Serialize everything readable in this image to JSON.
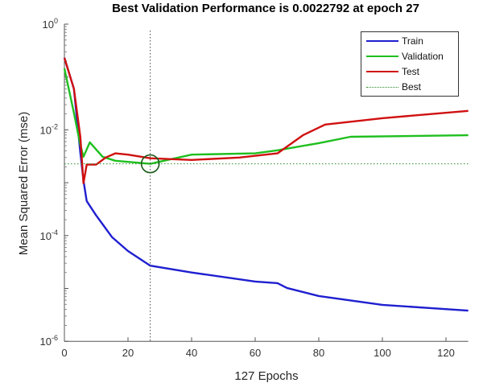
{
  "chart_data": {
    "type": "line",
    "title": "Best Validation Performance is 0.0022792 at epoch 27",
    "xlabel": "127 Epochs",
    "ylabel": "Mean Squared Error  (mse)",
    "xlim": [
      0,
      127
    ],
    "ylim": [
      1e-06,
      1
    ],
    "yscale": "log",
    "xticks": [
      0,
      20,
      40,
      60,
      80,
      100,
      120
    ],
    "yticks": [
      "10^0",
      "10^-2",
      "10^-4",
      "10^-6"
    ],
    "grid": false,
    "legend_position": "upper right",
    "series": [
      {
        "name": "Train",
        "color": "#1f1fd0",
        "style": "solid",
        "points": [
          [
            0,
            0.23
          ],
          [
            3,
            0.06
          ],
          [
            5,
            0.0037
          ],
          [
            6,
            0.0011
          ],
          [
            7,
            0.00045
          ],
          [
            10,
            0.00024
          ],
          [
            15,
            9.3e-05
          ],
          [
            20,
            5.1e-05
          ],
          [
            27,
            2.7e-05
          ],
          [
            40,
            2e-05
          ],
          [
            60,
            1.35e-05
          ],
          [
            67,
            1.26e-05
          ],
          [
            70,
            1.02e-05
          ],
          [
            80,
            7.2e-06
          ],
          [
            100,
            4.9e-06
          ],
          [
            127,
            3.8e-06
          ]
        ]
      },
      {
        "name": "Validation",
        "color": "#1fbf1f",
        "style": "solid",
        "points": [
          [
            0,
            0.145
          ],
          [
            3,
            0.021
          ],
          [
            5,
            0.0052
          ],
          [
            6,
            0.0031
          ],
          [
            8,
            0.0058
          ],
          [
            12,
            0.0031
          ],
          [
            16,
            0.0026
          ],
          [
            27,
            0.0022792
          ],
          [
            40,
            0.0034
          ],
          [
            60,
            0.0036
          ],
          [
            67,
            0.0041
          ],
          [
            80,
            0.0056
          ],
          [
            90,
            0.0074
          ],
          [
            127,
            0.0079
          ]
        ]
      },
      {
        "name": "Test",
        "color": "#d01010",
        "style": "solid",
        "points": [
          [
            0,
            0.23
          ],
          [
            3,
            0.06
          ],
          [
            5,
            0.0074
          ],
          [
            6,
            0.00098
          ],
          [
            7,
            0.0022
          ],
          [
            10,
            0.0022
          ],
          [
            13,
            0.003
          ],
          [
            16,
            0.0036
          ],
          [
            20,
            0.0034
          ],
          [
            27,
            0.0029
          ],
          [
            40,
            0.0027
          ],
          [
            55,
            0.003
          ],
          [
            67,
            0.0036
          ],
          [
            75,
            0.0079
          ],
          [
            82,
            0.0126
          ],
          [
            100,
            0.0166
          ],
          [
            127,
            0.0229
          ]
        ]
      },
      {
        "name": "Best",
        "color": "#2a8a2a",
        "style": "dotted",
        "value": 0.0022792,
        "epoch": 27
      }
    ]
  },
  "legend": {
    "items": [
      {
        "label": "Train",
        "color": "#1f1fd0"
      },
      {
        "label": "Validation",
        "color": "#1fbf1f"
      },
      {
        "label": "Test",
        "color": "#d01010"
      },
      {
        "label": "Best",
        "color": "#2a8a2a"
      }
    ]
  }
}
